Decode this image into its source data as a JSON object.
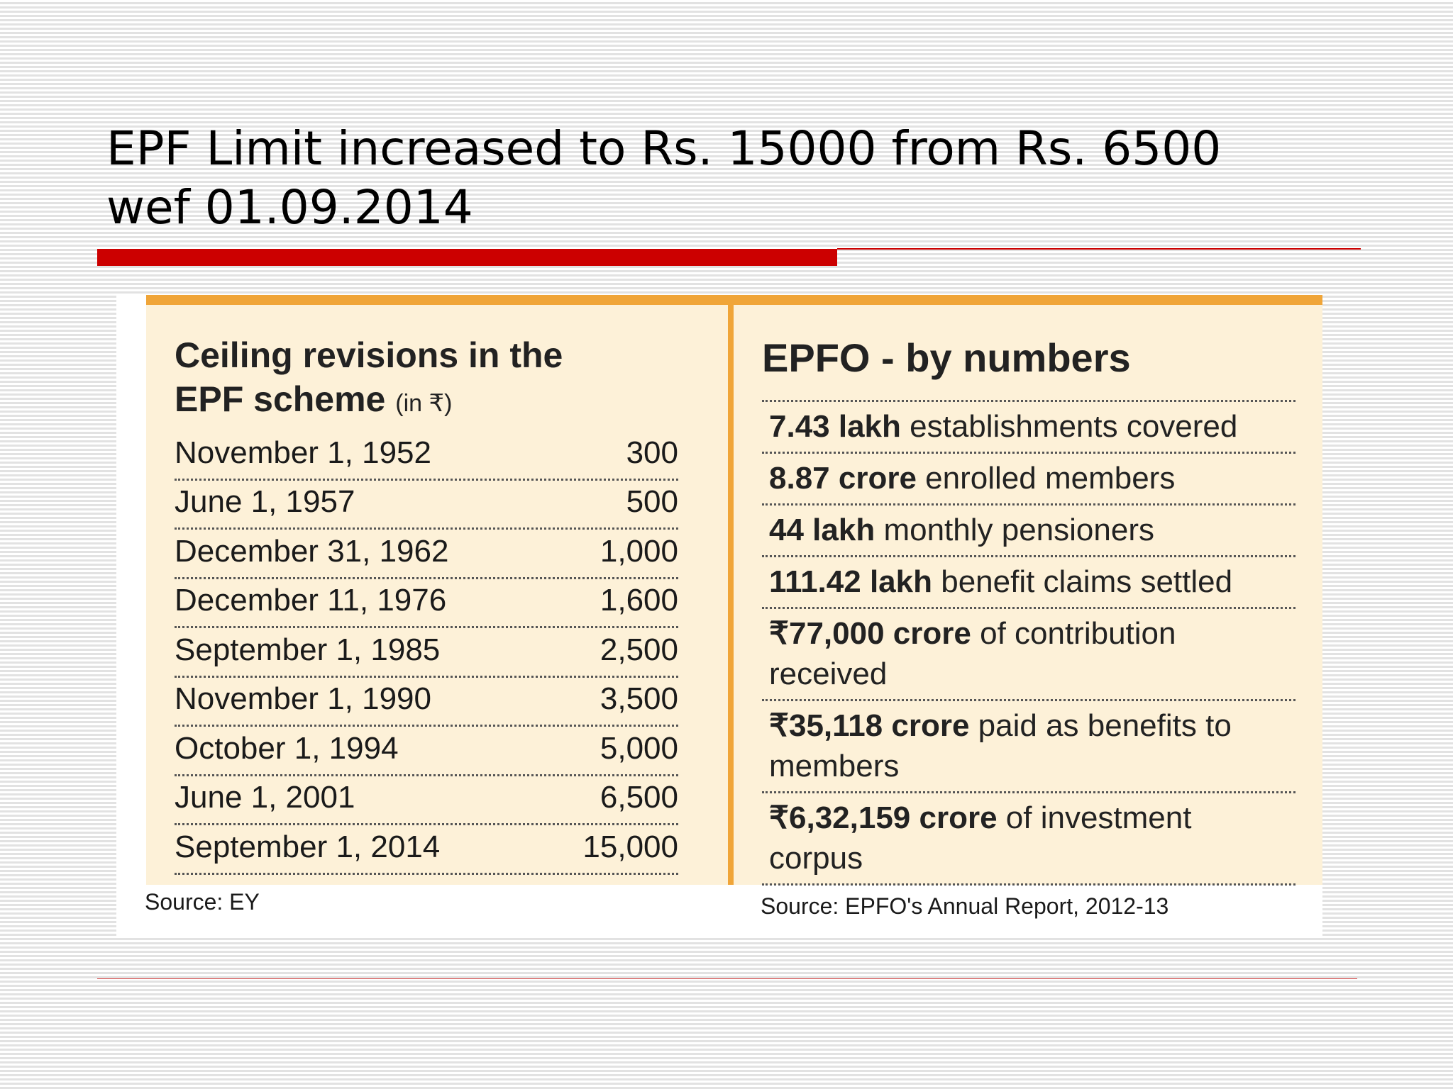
{
  "slide": {
    "title_line1": "EPF Limit increased to Rs. 15000 from Rs. 6500",
    "title_line2": "wef 01.09.2014"
  },
  "ceiling": {
    "title_line1": "Ceiling revisions in the",
    "title_line2": "EPF scheme",
    "unit": "(in ₹)",
    "rows": [
      {
        "date": "November 1, 1952",
        "value": "300"
      },
      {
        "date": "June 1, 1957",
        "value": "500"
      },
      {
        "date": "December 31, 1962",
        "value": "1,000"
      },
      {
        "date": "December 11, 1976",
        "value": "1,600"
      },
      {
        "date": "September 1, 1985",
        "value": "2,500"
      },
      {
        "date": "November 1, 1990",
        "value": "3,500"
      },
      {
        "date": "October 1, 1994",
        "value": "5,000"
      },
      {
        "date": "June 1, 2001",
        "value": "6,500"
      },
      {
        "date": "September 1, 2014",
        "value": "15,000"
      }
    ],
    "source": "Source: EY"
  },
  "epfo": {
    "title": "EPFO - by numbers",
    "stats": [
      {
        "bold": "7.43 lakh",
        "text": " establishments covered"
      },
      {
        "bold": "8.87 crore",
        "text": " enrolled members"
      },
      {
        "bold": "44 lakh",
        "text": " monthly pensioners"
      },
      {
        "bold": "111.42 lakh",
        "text": " benefit claims settled"
      },
      {
        "bold": "₹77,000 crore",
        "text": " of contribution received"
      },
      {
        "bold": "₹35,118 crore",
        "text": " paid as benefits to  members"
      },
      {
        "bold": "₹6,32,159 crore",
        "text": " of investment corpus"
      }
    ],
    "source": "Source: EPFO's Annual Report, 2012-13"
  }
}
